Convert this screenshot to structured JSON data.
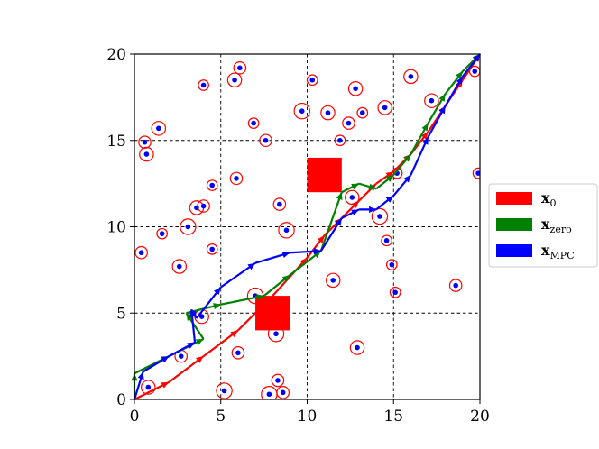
{
  "chart_data": {
    "type": "scatter",
    "title": "",
    "xlabel": "",
    "ylabel": "",
    "xlim": [
      0,
      20
    ],
    "ylim": [
      0,
      20
    ],
    "xticks": [
      "0",
      "5",
      "10",
      "15",
      "20"
    ],
    "yticks": [
      "0",
      "5",
      "10",
      "15",
      "20"
    ],
    "grid": true,
    "legend_position": "right",
    "colors": {
      "x0": "#ff0000",
      "xzero": "#008000",
      "xmpc": "#0000ff",
      "obstacle": "#ff0000",
      "dot": "#0000ff",
      "ring": "#ff0000"
    },
    "legend": [
      {
        "key": "x0",
        "main": "x",
        "sub": "0"
      },
      {
        "key": "xzero",
        "main": "x",
        "sub": "zero"
      },
      {
        "key": "xmpc",
        "main": "x",
        "sub": "MPC"
      }
    ],
    "obstacles": [
      {
        "x": 11.0,
        "y": 13.0,
        "size": 2.0
      },
      {
        "x": 8.0,
        "y": 5.0,
        "size": 2.0
      }
    ],
    "particles": [
      [
        0.6,
        14.9,
        0.35
      ],
      [
        0.7,
        14.2,
        0.4
      ],
      [
        1.4,
        15.7,
        0.4
      ],
      [
        4.0,
        18.2,
        0.3
      ],
      [
        5.8,
        18.5,
        0.4
      ],
      [
        6.1,
        19.2,
        0.35
      ],
      [
        6.9,
        16.0,
        0.3
      ],
      [
        7.6,
        15.0,
        0.35
      ],
      [
        9.7,
        16.7,
        0.45
      ],
      [
        10.3,
        18.5,
        0.3
      ],
      [
        11.2,
        16.6,
        0.4
      ],
      [
        11.9,
        15.0,
        0.3
      ],
      [
        12.4,
        16.0,
        0.35
      ],
      [
        12.8,
        18.0,
        0.4
      ],
      [
        13.2,
        16.6,
        0.3
      ],
      [
        14.5,
        16.9,
        0.4
      ],
      [
        16.0,
        18.7,
        0.4
      ],
      [
        17.2,
        17.3,
        0.4
      ],
      [
        19.7,
        19.0,
        0.3
      ],
      [
        19.9,
        13.1,
        0.3
      ],
      [
        15.2,
        13.1,
        0.3
      ],
      [
        12.6,
        11.7,
        0.4
      ],
      [
        14.2,
        10.6,
        0.45
      ],
      [
        14.6,
        9.2,
        0.3
      ],
      [
        14.9,
        7.8,
        0.3
      ],
      [
        15.1,
        6.2,
        0.3
      ],
      [
        18.6,
        6.6,
        0.35
      ],
      [
        11.5,
        6.9,
        0.4
      ],
      [
        8.4,
        11.3,
        0.35
      ],
      [
        8.8,
        9.8,
        0.45
      ],
      [
        5.9,
        12.8,
        0.35
      ],
      [
        4.5,
        12.4,
        0.3
      ],
      [
        3.6,
        11.1,
        0.4
      ],
      [
        4.0,
        11.2,
        0.35
      ],
      [
        3.1,
        10.0,
        0.45
      ],
      [
        1.6,
        9.6,
        0.3
      ],
      [
        4.5,
        8.7,
        0.3
      ],
      [
        2.6,
        7.7,
        0.4
      ],
      [
        0.4,
        8.5,
        0.35
      ],
      [
        7.0,
        6.0,
        0.45
      ],
      [
        3.9,
        4.8,
        0.4
      ],
      [
        8.2,
        3.8,
        0.45
      ],
      [
        6.0,
        2.7,
        0.35
      ],
      [
        2.7,
        2.5,
        0.35
      ],
      [
        0.8,
        0.7,
        0.4
      ],
      [
        5.2,
        0.5,
        0.45
      ],
      [
        7.8,
        0.3,
        0.45
      ],
      [
        8.3,
        1.1,
        0.35
      ],
      [
        8.6,
        0.4,
        0.35
      ],
      [
        12.9,
        3.0,
        0.4
      ]
    ],
    "series": [
      {
        "key": "x0",
        "points": [
          [
            0,
            0
          ],
          [
            2,
            1
          ],
          [
            4,
            2.5
          ],
          [
            6,
            4
          ],
          [
            8,
            6
          ],
          [
            10,
            8.2
          ],
          [
            11,
            9.5
          ],
          [
            12,
            10.5
          ],
          [
            13,
            11.5
          ],
          [
            14,
            12.5
          ],
          [
            15,
            13.2
          ],
          [
            16,
            14.2
          ],
          [
            17,
            15.5
          ],
          [
            18,
            17
          ],
          [
            19,
            18.5
          ],
          [
            20,
            20
          ]
        ]
      },
      {
        "key": "xzero",
        "points": [
          [
            0,
            0
          ],
          [
            0,
            1.5
          ],
          [
            2,
            2.5
          ],
          [
            4,
            3.5
          ],
          [
            3,
            5
          ],
          [
            5,
            5.5
          ],
          [
            7.5,
            6
          ],
          [
            9,
            7.2
          ],
          [
            10.8,
            8.6
          ],
          [
            12,
            12
          ],
          [
            13,
            12.5
          ],
          [
            14,
            12.2
          ],
          [
            15,
            13
          ],
          [
            16,
            14.2
          ],
          [
            17,
            16
          ],
          [
            18,
            17.7
          ],
          [
            19,
            19
          ],
          [
            20,
            20
          ]
        ]
      },
      {
        "key": "xmpc",
        "points": [
          [
            0,
            0
          ],
          [
            0.5,
            1.6
          ],
          [
            2,
            2.5
          ],
          [
            3.5,
            3.3
          ],
          [
            3.3,
            5.2
          ],
          [
            3.6,
            4.7
          ],
          [
            5,
            6.5
          ],
          [
            7,
            7.9
          ],
          [
            9,
            8.5
          ],
          [
            10.8,
            8.6
          ],
          [
            12,
            10.5
          ],
          [
            13,
            11
          ],
          [
            14,
            11
          ],
          [
            15,
            11.8
          ],
          [
            16,
            13
          ],
          [
            17,
            15.2
          ],
          [
            18,
            17
          ],
          [
            19,
            18.7
          ],
          [
            20,
            20
          ]
        ]
      }
    ]
  }
}
